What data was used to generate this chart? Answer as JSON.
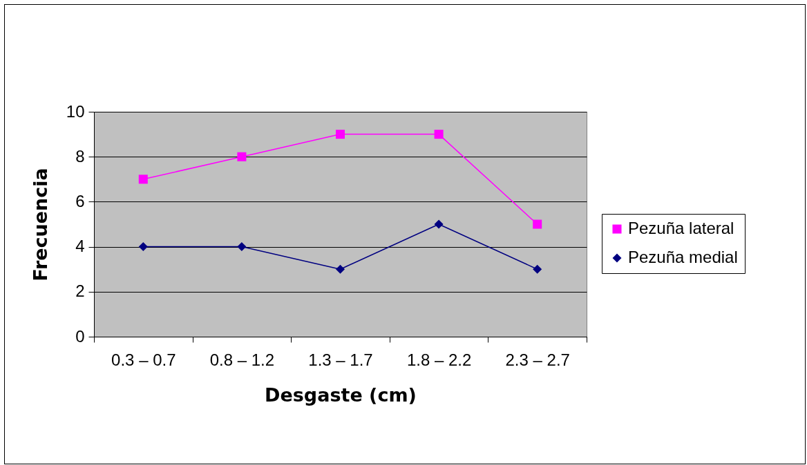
{
  "chart_data": {
    "type": "line",
    "xlabel": "Desgaste (cm)",
    "ylabel": "Frecuencia",
    "categories": [
      "0.3 – 0.7",
      "0.8 – 1.2",
      "1.3 – 1.7",
      "1.8 – 2.2",
      "2.3 – 2.7"
    ],
    "series": [
      {
        "name": "Pezuña lateral",
        "color": "#ff00ff",
        "marker": "square",
        "values": [
          7,
          8,
          9,
          9,
          5
        ]
      },
      {
        "name": "Pezuña medial",
        "color": "#000080",
        "marker": "diamond",
        "values": [
          4,
          4,
          3,
          5,
          3
        ]
      }
    ],
    "ylim": [
      0,
      10
    ],
    "yticks": [
      0,
      2,
      4,
      6,
      8,
      10
    ],
    "grid": "y",
    "legend": "right"
  }
}
